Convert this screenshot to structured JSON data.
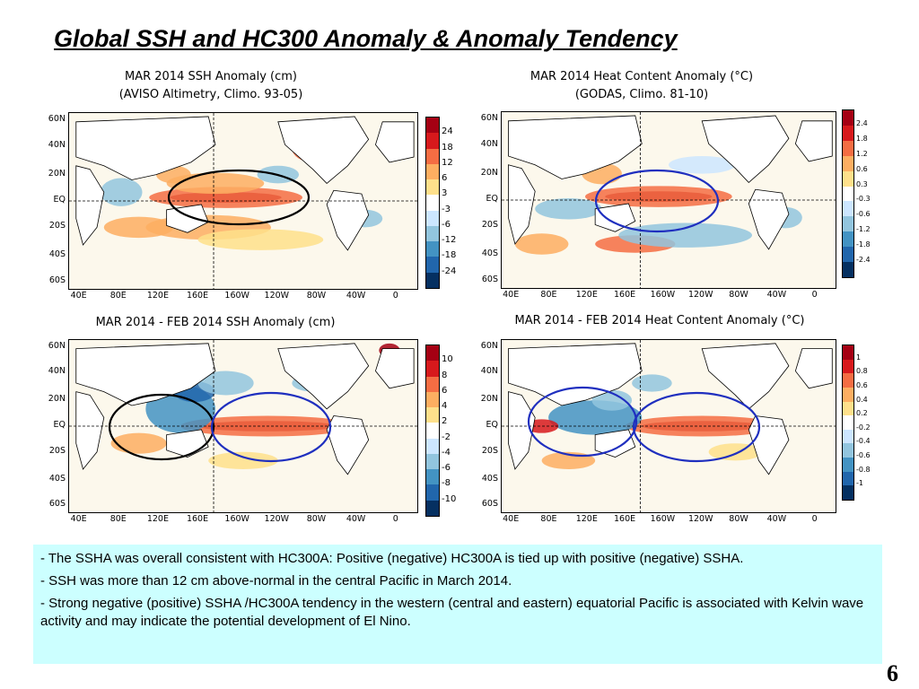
{
  "slide": {
    "title": "Global SSH and HC300 Anomaly & Anomaly Tendency",
    "page_number": "6"
  },
  "panels": [
    {
      "id": "ssh-anomaly",
      "title_line1": "MAR 2014 SSH Anomaly (cm)",
      "title_line2": "(AVISO Altimetry, Climo. 93-05)",
      "lat_labels": [
        "60N",
        "40N",
        "20N",
        "EQ",
        "20S",
        "40S",
        "60S"
      ],
      "lon_labels": [
        "40E",
        "80E",
        "120E",
        "160E",
        "160W",
        "120W",
        "80W",
        "40W",
        "0"
      ],
      "colorbar_labels": [
        "24",
        "18",
        "12",
        "6",
        "3",
        "-3",
        "-6",
        "-12",
        "-18",
        "-24"
      ],
      "colorbar_colors": [
        "#a50013",
        "#d7191c",
        "#f46d43",
        "#fdae61",
        "#fee08b",
        "#ffffff",
        "#cce6ff",
        "#92c5de",
        "#4393c3",
        "#2166ac",
        "#053061"
      ],
      "circles": [
        {
          "color": "#000000"
        }
      ]
    },
    {
      "id": "hc-anomaly",
      "title_line1": "MAR 2014 Heat Content Anomaly (°C)",
      "title_line2": "(GODAS, Climo. 81-10)",
      "lat_labels": [
        "60N",
        "40N",
        "20N",
        "EQ",
        "20S",
        "40S",
        "60S"
      ],
      "lon_labels": [
        "40E",
        "80E",
        "120E",
        "160E",
        "160W",
        "120W",
        "80W",
        "40W",
        "0"
      ],
      "colorbar_labels": [
        "2.4",
        "1.8",
        "1.2",
        "0.6",
        "0.3",
        "-0.3",
        "-0.6",
        "-1.2",
        "-1.8",
        "-2.4"
      ],
      "colorbar_colors": [
        "#a50013",
        "#d7191c",
        "#f46d43",
        "#fdae61",
        "#fee08b",
        "#ffffff",
        "#cce6ff",
        "#92c5de",
        "#4393c3",
        "#2166ac",
        "#053061"
      ],
      "circles": [
        {
          "color": "#1f2fbf"
        }
      ]
    },
    {
      "id": "ssh-tendency",
      "title_line1": "MAR 2014 - FEB 2014 SSH Anomaly (cm)",
      "title_line2": "",
      "lat_labels": [
        "60N",
        "40N",
        "20N",
        "EQ",
        "20S",
        "40S",
        "60S"
      ],
      "lon_labels": [
        "40E",
        "80E",
        "120E",
        "160E",
        "160W",
        "120W",
        "80W",
        "40W",
        "0"
      ],
      "colorbar_labels": [
        "10",
        "8",
        "6",
        "4",
        "2",
        "-2",
        "-4",
        "-6",
        "-8",
        "-10"
      ],
      "colorbar_colors": [
        "#a50013",
        "#d7191c",
        "#f46d43",
        "#fdae61",
        "#fee08b",
        "#ffffff",
        "#cce6ff",
        "#92c5de",
        "#4393c3",
        "#2166ac",
        "#053061"
      ],
      "circles": [
        {
          "color": "#000000"
        },
        {
          "color": "#1f2fbf"
        }
      ]
    },
    {
      "id": "hc-tendency",
      "title_line1": "MAR 2014 - FEB 2014 Heat Content Anomaly (°C)",
      "title_line2": "",
      "lat_labels": [
        "60N",
        "40N",
        "20N",
        "EQ",
        "20S",
        "40S",
        "60S"
      ],
      "lon_labels": [
        "40E",
        "80E",
        "120E",
        "160E",
        "160W",
        "120W",
        "80W",
        "40W",
        "0"
      ],
      "colorbar_labels": [
        "1",
        "0.8",
        "0.6",
        "0.4",
        "0.2",
        "-0.2",
        "-0.4",
        "-0.6",
        "-0.8",
        "-1"
      ],
      "colorbar_colors": [
        "#a50013",
        "#d7191c",
        "#f46d43",
        "#fdae61",
        "#fee08b",
        "#ffffff",
        "#cce6ff",
        "#92c5de",
        "#4393c3",
        "#2166ac",
        "#053061"
      ],
      "circles": [
        {
          "color": "#1f2fbf"
        },
        {
          "color": "#1f2fbf"
        }
      ]
    }
  ],
  "notes": [
    "- The SSHA was overall consistent with HC300A: Positive  (negative) HC300A is tied up with positive (negative) SSHA.",
    "- SSH was more than 12 cm above-normal in the central Pacific in March 2014.",
    "- Strong negative (positive) SSHA /HC300A tendency in the western (central and eastern) equatorial Pacific is associated with Kelvin wave activity and may indicate the potential development of El Nino."
  ]
}
